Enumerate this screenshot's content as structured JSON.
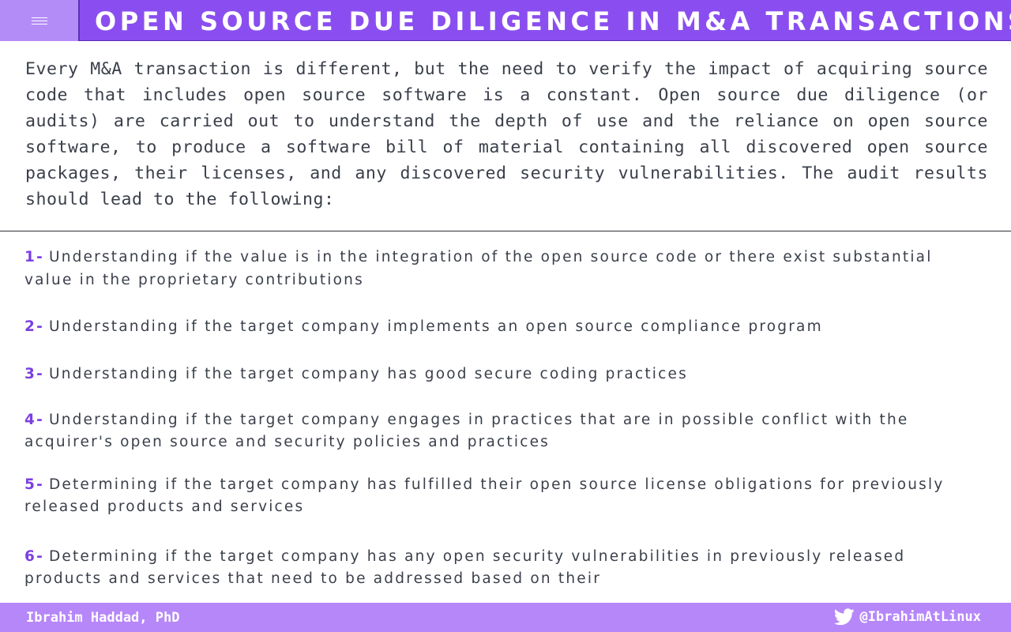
{
  "header": {
    "menu_icon": "hamburger-menu-icon",
    "title": "OPEN SOURCE DUE DILIGENCE IN M&A TRANSACTIONS"
  },
  "intro": {
    "text": "Every M&A transaction is different, but the need to verify the impact of acquiring source code that includes open source software is a constant. Open source due diligence (or audits) are carried out to understand the depth of use and the reliance on open source software, to produce a software bill of material containing all discovered open source packages, their licenses, and any discovered security vulnerabilities. The audit results should lead to the following:"
  },
  "items": [
    {
      "number": "1-",
      "text": "Understanding if the value is in the integration of the open source code or there exist substantial value in the proprietary contributions"
    },
    {
      "number": "2-",
      "text": "Understanding if the target company implements an open source compliance program"
    },
    {
      "number": "3-",
      "text": "Understanding if the target company has good  secure coding practices"
    },
    {
      "number": "4-",
      "text": "Understanding if the target company engages in practices that are in possible conflict with the acquirer's open source and security policies and practices"
    },
    {
      "number": "5-",
      "text": "Determining if the target company has fulfilled their open source license obligations for previously released products and services"
    },
    {
      "number": "6-",
      "text": "Determining if the target company has any open security vulnerabilities in previously released products and services that need to be addressed based on their"
    }
  ],
  "footer": {
    "author": "Ibrahim Haddad, PhD",
    "social_icon": "twitter-icon",
    "handle": "@IbrahimAtLinux"
  },
  "colors": {
    "header_bg": "#8a4ef0",
    "menu_bg": "#b48cf7",
    "footer_bg": "#b687f9",
    "number_accent": "#7b3fe4",
    "body_text": "#3a3f4a"
  }
}
